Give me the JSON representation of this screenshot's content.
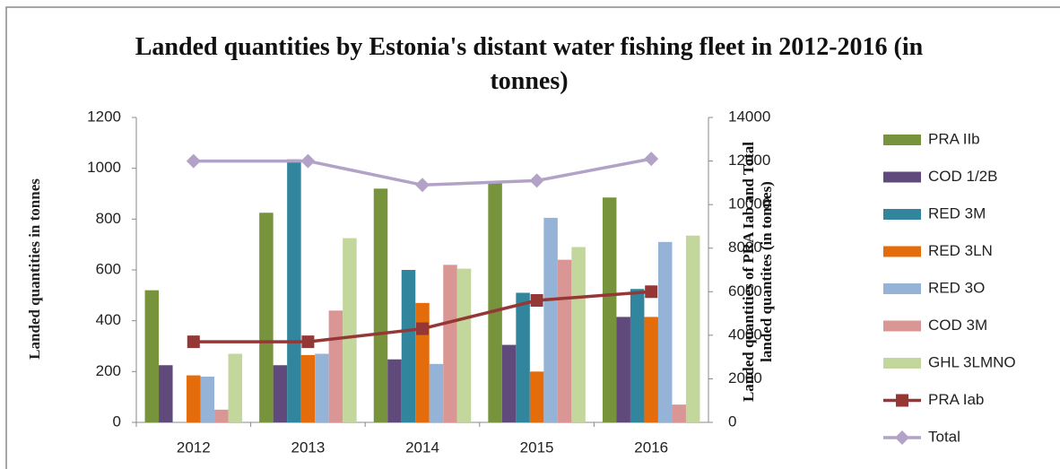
{
  "chart_data": {
    "type": "bar",
    "title": "Landed quantities by Estonia's distant water fishing fleet in 2012-2016 (in tonnes)",
    "y_label": "Landed quantities in tonnes",
    "y2_label": "Landed quantities of PRA Iab and Total landed quantites (in tonnes)",
    "categories": [
      "2012",
      "2013",
      "2014",
      "2015",
      "2016"
    ],
    "ylim": [
      0,
      1200
    ],
    "yticks": [
      0,
      200,
      400,
      600,
      800,
      1000,
      1200
    ],
    "y2lim": [
      0,
      14000
    ],
    "y2ticks": [
      0,
      2000,
      4000,
      6000,
      8000,
      10000,
      12000,
      14000
    ],
    "legend": "right",
    "series": [
      {
        "name": "PRA IIb",
        "color": "#77933c",
        "type": "bar",
        "values": [
          520,
          825,
          920,
          945,
          885
        ]
      },
      {
        "name": "COD 1/2B",
        "color": "#604a7b",
        "type": "bar",
        "values": [
          225,
          225,
          248,
          305,
          415
        ]
      },
      {
        "name": "RED 3M",
        "color": "#31859c",
        "type": "bar",
        "values": [
          null,
          1035,
          600,
          510,
          525
        ]
      },
      {
        "name": "RED 3LN",
        "color": "#e46c0a",
        "type": "bar",
        "values": [
          185,
          265,
          470,
          200,
          415
        ]
      },
      {
        "name": "RED 3O",
        "color": "#95b3d7",
        "type": "bar",
        "values": [
          180,
          270,
          230,
          805,
          710
        ]
      },
      {
        "name": "COD 3M",
        "color": "#d99694",
        "type": "bar",
        "values": [
          50,
          440,
          620,
          640,
          70
        ]
      },
      {
        "name": "GHL 3LMNO",
        "color": "#c3d69b",
        "type": "bar",
        "values": [
          270,
          725,
          605,
          690,
          735
        ]
      },
      {
        "name": "PRA Iab",
        "color": "#953735",
        "type": "line",
        "marker": "square",
        "axis": "y2",
        "values": [
          3700,
          3700,
          4300,
          5600,
          6000
        ]
      },
      {
        "name": "Total",
        "color": "#b3a2c7",
        "type": "line",
        "marker": "diamond",
        "axis": "y2",
        "values": [
          12000,
          12000,
          10900,
          11100,
          12100
        ]
      }
    ]
  }
}
